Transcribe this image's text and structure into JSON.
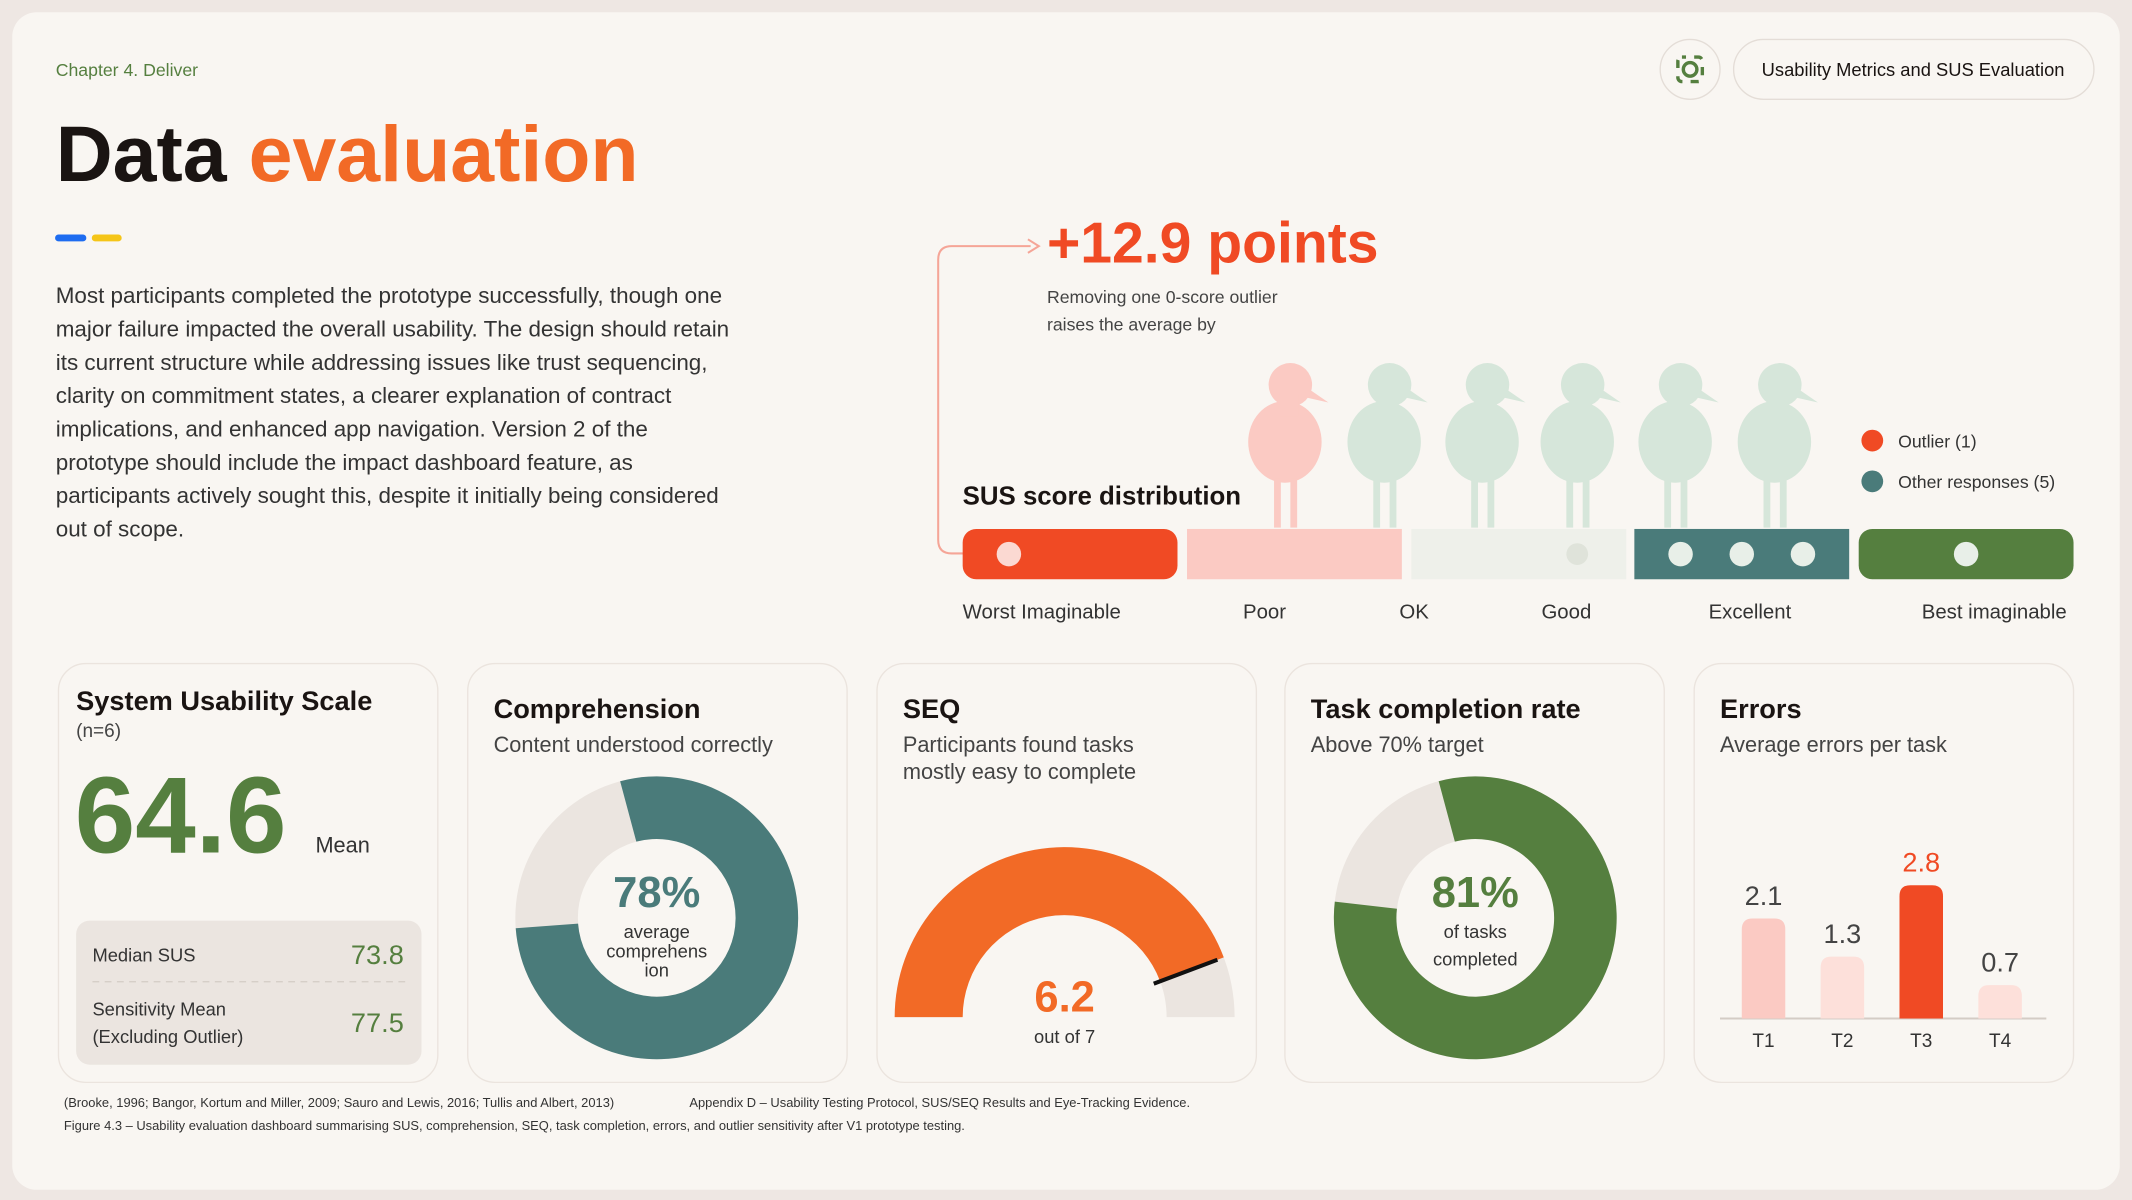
{
  "header": {
    "chapter": "Chapter 4. Deliver",
    "title_1": "Data",
    "title_2": "evaluation",
    "tag": "Usability Metrics and SUS Evaluation"
  },
  "intro": [
    "Most participants completed the prototype successfully, though one",
    "major failure impacted the overall usability. The design should retain",
    "its current structure while addressing issues like trust sequencing,",
    "clarity on commitment states, a clearer explanation of contract",
    "implications, and enhanced app navigation. Version 2 of the",
    "prototype should include the impact dashboard feature, as",
    "participants actively sought this, despite it initially being considered",
    "out of scope."
  ],
  "outlier": {
    "headline": "+12.9 points",
    "caption": [
      "Removing one 0-score outlier",
      "raises the average by"
    ]
  },
  "distribution": {
    "title": "SUS score distribution",
    "bands": [
      {
        "color": "#f04a24",
        "dots": 1
      },
      {
        "color": "#fbcac3",
        "dots": 0
      },
      {
        "color": "#eef0ea",
        "dots": 1
      },
      {
        "color": "#4a7b7a",
        "dots": 3
      },
      {
        "color": "#557f3f",
        "dots": 1
      }
    ],
    "labels": [
      "Worst Imaginable",
      "Poor",
      "OK",
      "Good",
      "Excellent",
      "Best imaginable"
    ],
    "legend": [
      {
        "label": "Outlier (1)",
        "color": "#f04a24"
      },
      {
        "label": "Other responses (5)",
        "color": "#4a7b7a"
      }
    ]
  },
  "cards": {
    "sus": {
      "title": "System Usability Scale",
      "subtitle": "(n=6)",
      "value": 64.6,
      "unit": "Mean",
      "rows": [
        {
          "label": [
            "Median SUS"
          ],
          "value": 73.8
        },
        {
          "label": [
            "Sensitivity Mean",
            "(Excluding Outlier)"
          ],
          "value": 77.5
        }
      ]
    },
    "comprehension": {
      "title": "Comprehension",
      "subtitle": [
        "Content understood correctly"
      ],
      "value": 78,
      "value_label": "78%",
      "caption": [
        "average",
        "comprehens",
        "ion"
      ],
      "color": "#4a7b7a"
    },
    "seq": {
      "title": "SEQ",
      "subtitle": [
        "Participants found tasks",
        "mostly easy to complete"
      ],
      "value": 6.2,
      "max": 7,
      "caption": "out of 7",
      "color": "#f26a26"
    },
    "task": {
      "title": "Task completion rate",
      "subtitle": [
        "Above 70% target"
      ],
      "value": 81,
      "value_label": "81%",
      "caption": [
        "of tasks",
        "completed"
      ],
      "color": "#557f3f"
    },
    "errors": {
      "title": "Errors",
      "subtitle": [
        "Average errors per task"
      ],
      "categories": [
        "T1",
        "T2",
        "T3",
        "T4"
      ],
      "values": [
        2.1,
        1.3,
        2.8,
        0.7
      ],
      "colors": [
        "#fbcac3",
        "#fde0da",
        "#f04a24",
        "#fde0da"
      ]
    }
  },
  "footer": {
    "citations": "(Brooke, 1996; Bangor, Kortum and Miller, 2009; Sauro and Lewis, 2016; Tullis and Albert, 2013)",
    "appendix": "Appendix D – Usability Testing Protocol, SUS/SEQ Results and Eye-Tracking Evidence.",
    "figure": "Figure 4.3 – Usability evaluation dashboard summarising SUS, comprehension, SEQ, task completion, errors, and outlier sensitivity after V1 prototype testing."
  }
}
